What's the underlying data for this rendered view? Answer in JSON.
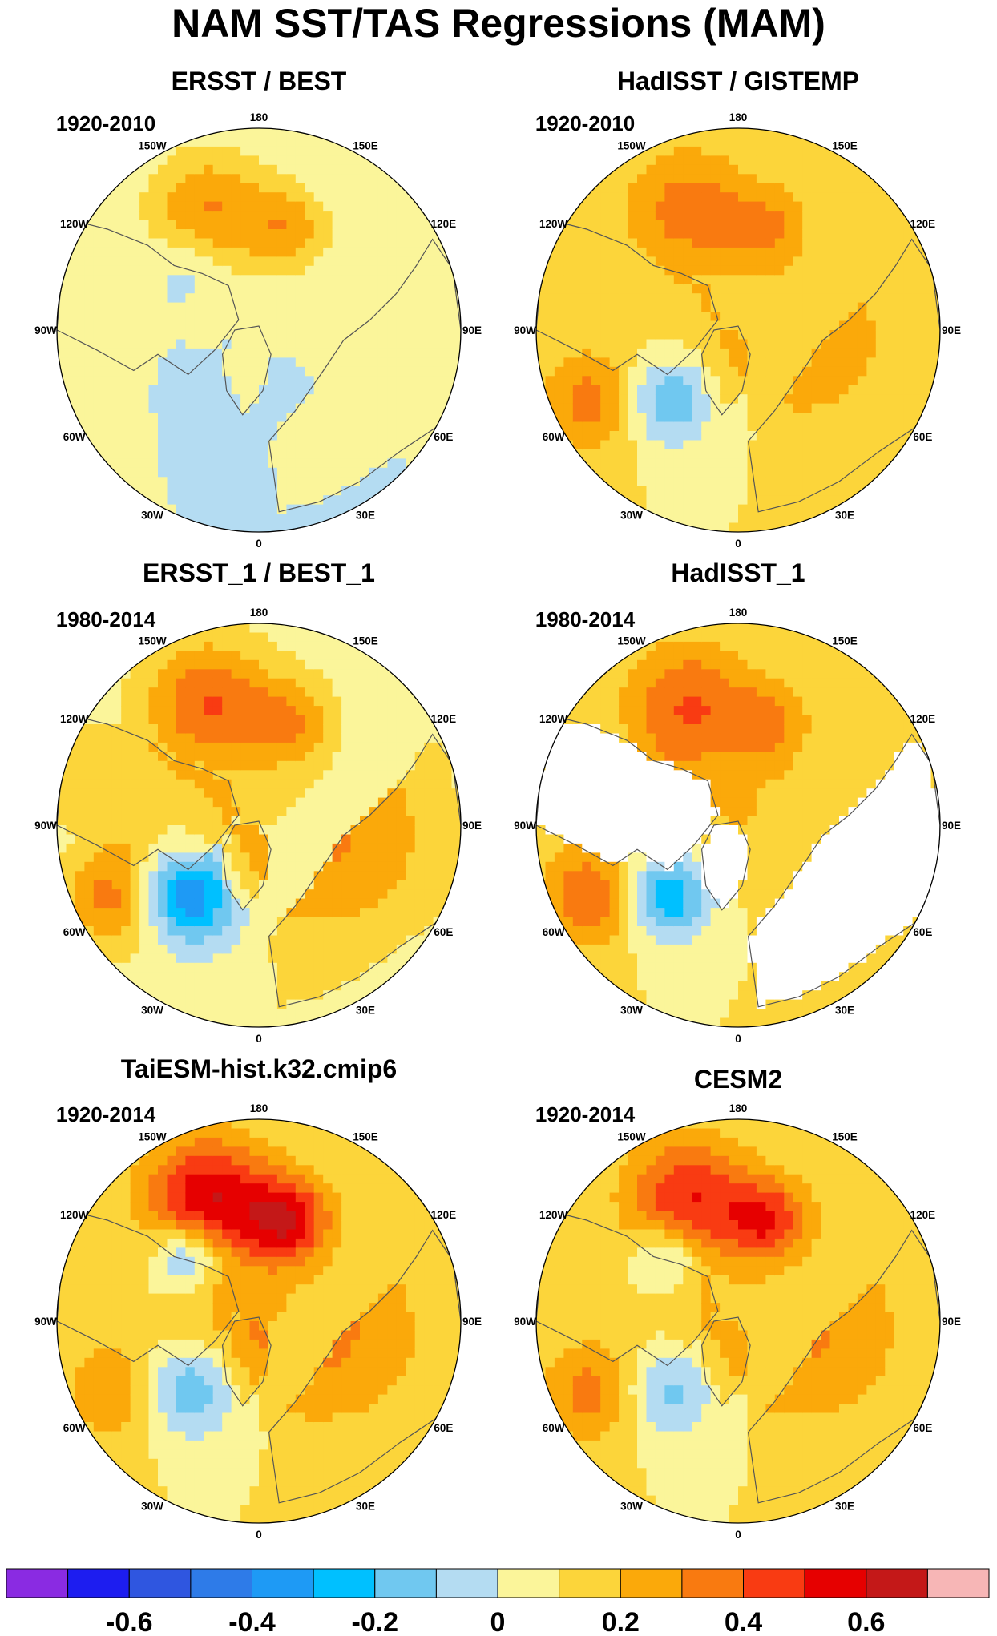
{
  "title": "NAM SST/TAS Regressions (MAM)",
  "lon_labels": [
    "180",
    "150E",
    "120E",
    "90E",
    "60E",
    "30E",
    "0",
    "30W",
    "60W",
    "90W",
    "120W",
    "150W"
  ],
  "panels": [
    {
      "title": "ERSST / BEST",
      "period": "1920-2010",
      "ocean_level": 0,
      "land_level": 0,
      "n_lat": 0.3,
      "pac": 0.3,
      "nat_cold": -0.05,
      "nat_warm": 0.05,
      "eurasia": 0.05,
      "coast": -0.1,
      "arctic": 0.0,
      "land_missing": false
    },
    {
      "title": "HadISST / GISTEMP",
      "period": "1920-2010",
      "ocean_level": 0.1,
      "land_level": 0.1,
      "n_lat": 0.25,
      "pac": 0.25,
      "nat_cold": -0.3,
      "nat_warm": 0.25,
      "eurasia": 0.15,
      "coast": 0.0,
      "arctic": 0.05,
      "land_missing": false
    },
    {
      "title": "ERSST_1 / BEST_1",
      "period": "1980-2014",
      "ocean_level": 0.05,
      "land_level": 0.1,
      "n_lat": 0.3,
      "pac": 0.35,
      "nat_cold": -0.45,
      "nat_warm": 0.3,
      "eurasia": 0.2,
      "coast": 0.0,
      "arctic": 0.05,
      "land_missing": false
    },
    {
      "title": "HadISST_1",
      "period": "1980-2014",
      "ocean_level": 0.1,
      "land_level": 0.0,
      "n_lat": 0.25,
      "pac": 0.3,
      "nat_cold": -0.4,
      "nat_warm": 0.3,
      "eurasia": 0.15,
      "coast": 0.05,
      "arctic": 0.1,
      "land_missing": true
    },
    {
      "title": "TaiESM-hist.k32.cmip6",
      "period": "1920-2014",
      "ocean_level": 0.1,
      "land_level": 0.1,
      "n_lat": 0.55,
      "pac": 0.5,
      "nat_cold": -0.3,
      "nat_warm": 0.2,
      "eurasia": 0.2,
      "coast": -0.35,
      "arctic": 0.1,
      "land_missing": false
    },
    {
      "title": "CESM2",
      "period": "1920-2014",
      "ocean_level": 0.1,
      "land_level": 0.1,
      "n_lat": 0.45,
      "pac": 0.4,
      "nat_cold": -0.25,
      "nat_warm": 0.25,
      "eurasia": 0.2,
      "coast": -0.25,
      "arctic": 0.05,
      "land_missing": false
    }
  ],
  "colorbar": {
    "levels": [
      -0.7,
      -0.6,
      -0.5,
      -0.4,
      -0.3,
      -0.2,
      -0.1,
      0,
      0.1,
      0.2,
      0.3,
      0.4,
      0.5,
      0.6,
      0.7
    ],
    "colors": [
      "#8a2be2",
      "#1d1df0",
      "#2f56e0",
      "#2e7be8",
      "#1e9af5",
      "#00c0ff",
      "#70c8f0",
      "#b4dcf2",
      "#fbf59a",
      "#fcd53a",
      "#fba90a",
      "#f97a10",
      "#f93b12",
      "#e60000",
      "#c41818",
      "#f7b6b6"
    ],
    "labels": [
      "-0.6",
      "-0.4",
      "-0.2",
      "0",
      "0.2",
      "0.4",
      "0.6"
    ],
    "missing_color": "#ffffff",
    "coast_color": "#555555"
  }
}
